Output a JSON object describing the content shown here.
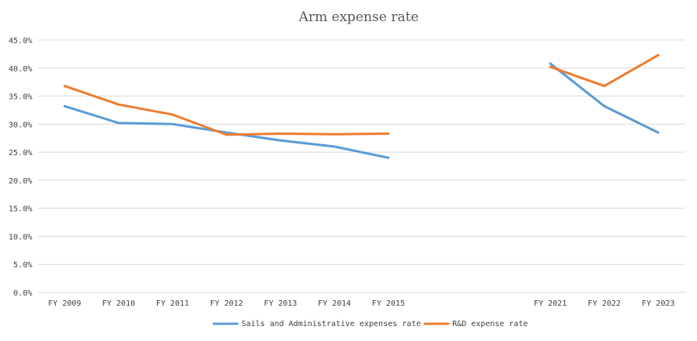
{
  "chart_data": {
    "type": "line",
    "title": "Arm expense rate",
    "xlabel": "",
    "ylabel": "",
    "ylim": [
      0,
      45
    ],
    "y_tick_step": 5,
    "y_tick_format": "percent_1dp",
    "grid": true,
    "legend_position": "bottom",
    "categories": [
      "FY 2009",
      "FY 2010",
      "FY 2011",
      "FY 2012",
      "FY 2013",
      "FY 2014",
      "FY 2015",
      "",
      "",
      "FY 2021",
      "FY 2022",
      "FY 2023"
    ],
    "series": [
      {
        "name": "Sails and Administrative expenses rate",
        "color": "#5b9bd5",
        "values": [
          33.2,
          30.2,
          30.0,
          28.5,
          27.1,
          26.0,
          24.0,
          null,
          null,
          40.8,
          33.2,
          28.5
        ]
      },
      {
        "name": "R&D expense rate",
        "color": "#ed7d31",
        "values": [
          36.8,
          33.5,
          31.7,
          28.1,
          28.3,
          28.2,
          28.3,
          null,
          null,
          40.2,
          36.8,
          42.3
        ]
      }
    ]
  }
}
